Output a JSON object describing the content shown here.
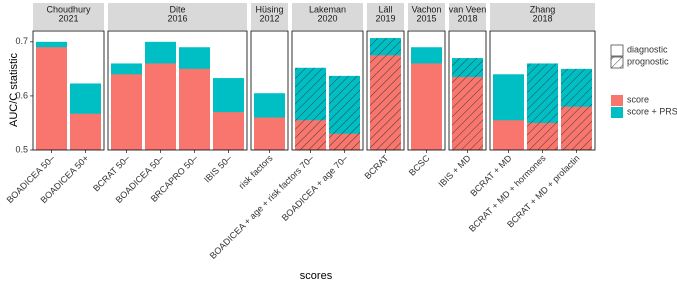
{
  "chart_data": {
    "type": "bar",
    "y_label": "AUC/C statistic",
    "x_label": "scores",
    "ylim": [
      0.5,
      0.72
    ],
    "yticks": [
      0.5,
      0.6,
      0.7
    ],
    "series": [
      {
        "name": "score",
        "color": "#F8766D"
      },
      {
        "name": "score + PRS",
        "color": "#00BFC4"
      }
    ],
    "design_legend": [
      {
        "name": "diagnostic",
        "hatched": false
      },
      {
        "name": "prognostic",
        "hatched": true
      }
    ],
    "facets": [
      {
        "label": [
          "Choudhury",
          "2021"
        ],
        "categories": [
          "BOADICEA 50–",
          "BOADICEA 50+"
        ],
        "prognostic": [
          false,
          false
        ],
        "series_values": [
          [
            0.69,
            0.567
          ],
          [
            0.7,
            0.623
          ]
        ]
      },
      {
        "label": [
          "Dite",
          "2016"
        ],
        "categories": [
          "BCRAT 50–",
          "BOADICEA 50–",
          "BRCAPRO 50–",
          "IBIS 50–"
        ],
        "prognostic": [
          false,
          false,
          false,
          false
        ],
        "series_values": [
          [
            0.64,
            0.66,
            0.65,
            0.57
          ],
          [
            0.66,
            0.7,
            0.69,
            0.633
          ]
        ]
      },
      {
        "label": [
          "Hüsing",
          "2012"
        ],
        "categories": [
          "risk factors"
        ],
        "prognostic": [
          false
        ],
        "series_values": [
          [
            0.56
          ],
          [
            0.605
          ]
        ]
      },
      {
        "label": [
          "Lakeman",
          "2020"
        ],
        "categories": [
          "BOADICEA + age + risk factors 70–",
          "BOADICEA + age 70–"
        ],
        "prognostic": [
          true,
          true
        ],
        "series_values": [
          [
            0.555,
            0.53
          ],
          [
            0.652,
            0.637
          ]
        ]
      },
      {
        "label": [
          "Läll",
          "2019"
        ],
        "categories": [
          "BCRAT"
        ],
        "prognostic": [
          true
        ],
        "series_values": [
          [
            0.675
          ],
          [
            0.707
          ]
        ]
      },
      {
        "label": [
          "Vachon",
          "2015"
        ],
        "categories": [
          "BCSC"
        ],
        "prognostic": [
          false
        ],
        "series_values": [
          [
            0.66
          ],
          [
            0.69
          ]
        ]
      },
      {
        "label": [
          "van Veen",
          "2018"
        ],
        "categories": [
          "IBIS + MD"
        ],
        "prognostic": [
          true
        ],
        "series_values": [
          [
            0.635
          ],
          [
            0.67
          ]
        ]
      },
      {
        "label": [
          "Zhang",
          "2018"
        ],
        "categories": [
          "BCRAT + MD",
          "BCRAT + MD + hormones",
          "BCRAT + MD + prolactin"
        ],
        "prognostic": [
          false,
          true,
          true
        ],
        "series_values": [
          [
            0.555,
            0.55,
            0.58
          ],
          [
            0.64,
            0.66,
            0.65
          ]
        ]
      }
    ]
  }
}
